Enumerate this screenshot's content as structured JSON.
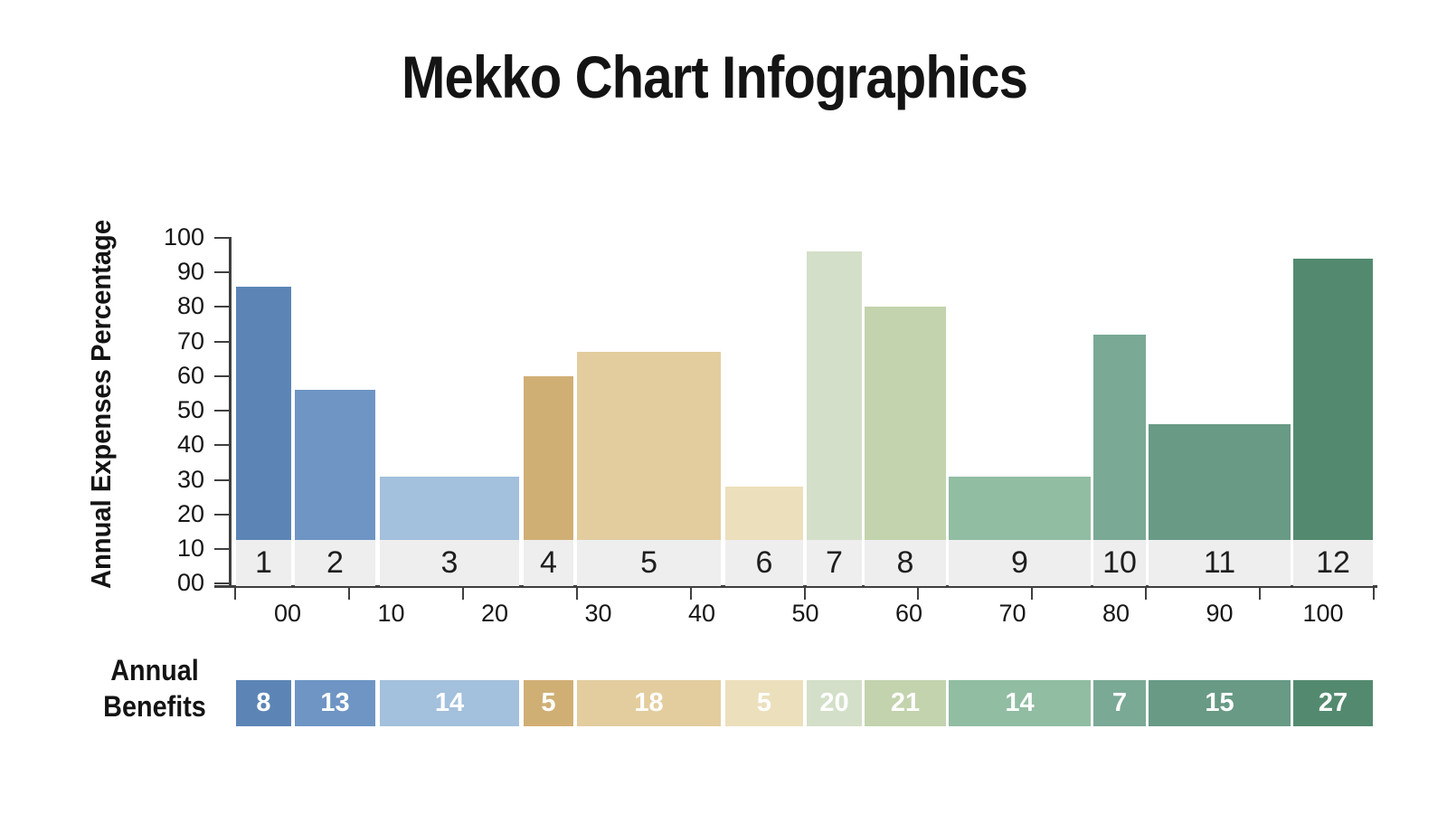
{
  "title": "Mekko Chart Infographics",
  "benefits_label": {
    "line1": "Annual",
    "line2": "Benefits"
  },
  "colors": {
    "background": "#ffffff",
    "axis": "#3f3f3f",
    "label_band_fill": "#eeeeef",
    "label_band_text": "#1e1e1e",
    "benefit_value_text": "#ffffff",
    "title_text": "#141414"
  },
  "chart_data": {
    "type": "bar",
    "subtype": "mekko-variable-width-columns",
    "title": "Mekko Chart Infographics",
    "ylabel": "Annual Expenses Percentage",
    "secondary_row_label": "Annual Benefits",
    "ylim": [
      0,
      100
    ],
    "xlim": [
      0,
      100
    ],
    "grid": false,
    "legend": "none",
    "y_tick_labels_bottom_to_top": [
      "00",
      "10",
      "20",
      "30",
      "40",
      "50",
      "60",
      "70",
      "80",
      "90",
      "100"
    ],
    "x_tick_labels_left_to_right": [
      "00",
      "10",
      "20",
      "30",
      "40",
      "50",
      "60",
      "70",
      "80",
      "90",
      "100"
    ],
    "bar_baseline_pct": 13,
    "segments": [
      {
        "label": "1",
        "x0": 0.0,
        "x1": 4.85,
        "expenses_pct": 86,
        "benefit": 8,
        "color": "#5c85b6"
      },
      {
        "label": "2",
        "x0": 5.17,
        "x1": 12.25,
        "expenses_pct": 56,
        "benefit": 13,
        "color": "#6e95c4"
      },
      {
        "label": "3",
        "x0": 12.65,
        "x1": 24.9,
        "expenses_pct": 31,
        "benefit": 14,
        "color": "#a3c0dc"
      },
      {
        "label": "4",
        "x0": 25.3,
        "x1": 29.67,
        "expenses_pct": 60,
        "benefit": 5,
        "color": "#d0af75"
      },
      {
        "label": "5",
        "x0": 30.0,
        "x1": 42.64,
        "expenses_pct": 67,
        "benefit": 18,
        "color": "#e3cd9e"
      },
      {
        "label": "6",
        "x0": 43.04,
        "x1": 49.88,
        "expenses_pct": 28,
        "benefit": 5,
        "color": "#ecdfbc"
      },
      {
        "label": "7",
        "x0": 50.2,
        "x1": 55.05,
        "expenses_pct": 96,
        "benefit": 20,
        "color": "#d3dfc8"
      },
      {
        "label": "8",
        "x0": 55.29,
        "x1": 62.45,
        "expenses_pct": 80,
        "benefit": 21,
        "color": "#c3d3ae"
      },
      {
        "label": "9",
        "x0": 62.69,
        "x1": 75.18,
        "expenses_pct": 31,
        "benefit": 14,
        "color": "#91bda3"
      },
      {
        "label": "10",
        "x0": 75.42,
        "x1": 80.03,
        "expenses_pct": 72,
        "benefit": 7,
        "color": "#7aa996"
      },
      {
        "label": "11",
        "x0": 80.27,
        "x1": 92.76,
        "expenses_pct": 46,
        "benefit": 15,
        "color": "#689a86"
      },
      {
        "label": "12",
        "x0": 93.0,
        "x1": 100.0,
        "expenses_pct": 94,
        "benefit": 27,
        "color": "#538a6f"
      }
    ]
  }
}
